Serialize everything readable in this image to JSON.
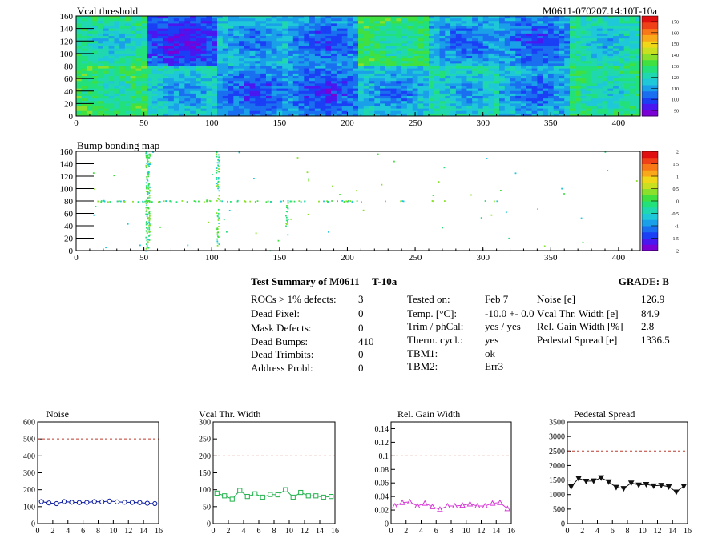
{
  "header": {
    "map1_title": "Vcal threshold",
    "map1_right_title": "M0611-070207.14:10T-10a",
    "map2_title": "Bump bonding map"
  },
  "colors": {
    "reference_line": "#c0392b",
    "noise": "#0a1aa0",
    "vcal": "#22b14c",
    "gain": "#d63ad6",
    "pedestal": "#111111"
  },
  "maps": [
    {
      "name": "vcal-threshold-map",
      "x_ticks": [
        "0",
        "50",
        "100",
        "150",
        "200",
        "250",
        "300",
        "350",
        "400"
      ],
      "y_ticks": [
        "0",
        "20",
        "40",
        "60",
        "80",
        "100",
        "120",
        "140",
        "160"
      ],
      "palette_ticks": [
        "90",
        "100",
        "110",
        "120",
        "130",
        "140",
        "150",
        "160",
        "170"
      ],
      "x_range": [
        0,
        416
      ],
      "y_range": [
        0,
        160
      ],
      "z_range": [
        85,
        175
      ]
    },
    {
      "name": "bump-bonding-map",
      "x_ticks": [
        "0",
        "50",
        "100",
        "150",
        "200",
        "250",
        "300",
        "350",
        "400"
      ],
      "y_ticks": [
        "0",
        "20",
        "40",
        "60",
        "80",
        "100",
        "120",
        "140",
        "160"
      ],
      "palette_ticks": [
        "-2",
        "-1.5",
        "-1",
        "-0.5",
        "0",
        "0.5",
        "1",
        "1.5",
        "2"
      ],
      "x_range": [
        0,
        416
      ],
      "y_range": [
        0,
        160
      ],
      "z_range": [
        -2,
        2
      ]
    }
  ],
  "summary": {
    "title": "Test Summary of M0611",
    "test_label": "T-10a",
    "grade": "GRADE:  B",
    "col1": [
      {
        "label": "ROCs > 1% defects:",
        "value": "3"
      },
      {
        "label": "Dead Pixel:",
        "value": "0"
      },
      {
        "label": "Mask Defects:",
        "value": "0"
      },
      {
        "label": "Dead Bumps:",
        "value": "410"
      },
      {
        "label": "Dead Trimbits:",
        "value": "0"
      },
      {
        "label": "Address Probl:",
        "value": "0"
      }
    ],
    "col2": [
      {
        "label": "Tested on:",
        "value": "Feb 7"
      },
      {
        "label": "Temp. [°C]:",
        "value": "-10.0 +- 0.0"
      },
      {
        "label": "Trim / phCal:",
        "value": "yes / yes"
      },
      {
        "label": "Therm. cycl.:",
        "value": "yes"
      },
      {
        "label": "TBM1:",
        "value": "ok"
      },
      {
        "label": "TBM2:",
        "value": "Err3"
      }
    ],
    "col3": [
      {
        "label": "Noise [e]",
        "value": "126.9"
      },
      {
        "label": "Vcal Thr. Width [e]",
        "value": "84.9"
      },
      {
        "label": "Rel. Gain Width [%]",
        "value": "2.8"
      },
      {
        "label": "Pedestal Spread [e]",
        "value": "1336.5"
      }
    ]
  },
  "chart_data": [
    {
      "type": "line",
      "title": "Noise",
      "marker": "circle-open",
      "x": [
        0,
        1,
        2,
        3,
        4,
        5,
        6,
        7,
        8,
        9,
        10,
        11,
        12,
        13,
        14,
        15
      ],
      "values": [
        130,
        122,
        118,
        130,
        126,
        124,
        125,
        130,
        128,
        133,
        128,
        126,
        125,
        124,
        120,
        118
      ],
      "xlim": [
        0,
        16
      ],
      "ylim": [
        0,
        600
      ],
      "threshold": 500,
      "x_ticks": [
        "0",
        "2",
        "4",
        "6",
        "8",
        "10",
        "12",
        "14",
        "16"
      ],
      "y_ticks": [
        "0",
        "100",
        "200",
        "300",
        "400",
        "500",
        "600"
      ],
      "x_tick_values": [
        0,
        2,
        4,
        6,
        8,
        10,
        12,
        14,
        16
      ],
      "y_tick_values": [
        0,
        100,
        200,
        300,
        400,
        500,
        600
      ]
    },
    {
      "type": "line",
      "title": "Vcal Thr. Width",
      "marker": "square-open",
      "x": [
        0,
        1,
        2,
        3,
        4,
        5,
        6,
        7,
        8,
        9,
        10,
        11,
        12,
        13,
        14,
        15
      ],
      "values": [
        90,
        82,
        72,
        98,
        80,
        88,
        78,
        86,
        85,
        100,
        78,
        92,
        82,
        82,
        78,
        80
      ],
      "xlim": [
        0,
        16
      ],
      "ylim": [
        0,
        300
      ],
      "threshold": 200,
      "x_ticks": [
        "0",
        "2",
        "4",
        "6",
        "8",
        "10",
        "12",
        "14",
        "16"
      ],
      "y_ticks": [
        "0",
        "50",
        "100",
        "150",
        "200",
        "250",
        "300"
      ],
      "x_tick_values": [
        0,
        2,
        4,
        6,
        8,
        10,
        12,
        14,
        16
      ],
      "y_tick_values": [
        0,
        50,
        100,
        150,
        200,
        250,
        300
      ]
    },
    {
      "type": "line",
      "title": "Rel. Gain Width",
      "marker": "triangle-open",
      "x": [
        0,
        1,
        2,
        3,
        4,
        5,
        6,
        7,
        8,
        9,
        10,
        11,
        12,
        13,
        14,
        15
      ],
      "values": [
        0.026,
        0.031,
        0.032,
        0.026,
        0.03,
        0.025,
        0.021,
        0.026,
        0.026,
        0.027,
        0.029,
        0.026,
        0.026,
        0.03,
        0.031,
        0.022
      ],
      "xlim": [
        0,
        16
      ],
      "ylim": [
        0,
        0.15
      ],
      "threshold": 0.1,
      "x_ticks": [
        "0",
        "2",
        "4",
        "6",
        "8",
        "10",
        "12",
        "14",
        "16"
      ],
      "y_ticks": [
        "0",
        "0.02",
        "0.04",
        "0.06",
        "0.08",
        "0.1",
        "0.12",
        "0.14"
      ],
      "x_tick_values": [
        0,
        2,
        4,
        6,
        8,
        10,
        12,
        14,
        16
      ],
      "y_tick_values": [
        0,
        0.02,
        0.04,
        0.06,
        0.08,
        0.1,
        0.12,
        0.14
      ]
    },
    {
      "type": "line",
      "title": "Pedestal Spread",
      "marker": "triangle-filled",
      "x": [
        0,
        1,
        2,
        3,
        4,
        5,
        6,
        7,
        8,
        9,
        10,
        11,
        12,
        13,
        14,
        15
      ],
      "values": [
        1270,
        1560,
        1460,
        1470,
        1580,
        1440,
        1250,
        1210,
        1400,
        1330,
        1350,
        1300,
        1320,
        1270,
        1090,
        1290
      ],
      "xlim": [
        0,
        16
      ],
      "ylim": [
        0,
        3500
      ],
      "threshold": 2500,
      "x_ticks": [
        "0",
        "2",
        "4",
        "6",
        "8",
        "10",
        "12",
        "14",
        "16"
      ],
      "y_ticks": [
        "0",
        "500",
        "1000",
        "1500",
        "2000",
        "2500",
        "3000",
        "3500"
      ],
      "x_tick_values": [
        0,
        2,
        4,
        6,
        8,
        10,
        12,
        14,
        16
      ],
      "y_tick_values": [
        0,
        500,
        1000,
        1500,
        2000,
        2500,
        3000,
        3500
      ]
    }
  ]
}
